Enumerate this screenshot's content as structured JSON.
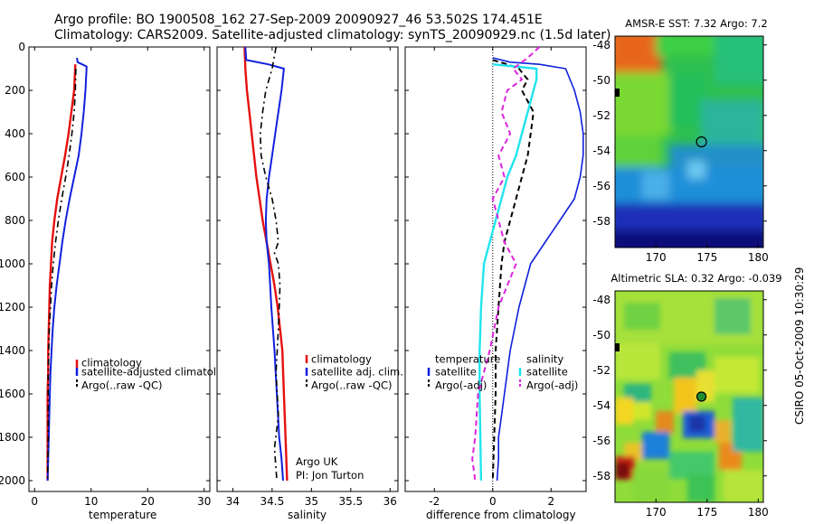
{
  "header": {
    "line1": "Argo profile: BO 1900508_162 27-Sep-2009 20090927_46 53.502S 174.451E",
    "line2": "Climatology: CARS2009. Satellite-adjusted climatology: synTS_20090929.nc (1.5d later)"
  },
  "side_stamp": "CSIRO 05-Oct-2009 10:30:29",
  "colors": {
    "climatology": "#e51010",
    "satellite": "#1020dd",
    "argo": "#000000",
    "sal_satellite": "#22e4ee",
    "sal_argo": "#dd22dd"
  },
  "chart_data": [
    {
      "type": "line",
      "xlabel": "temperature",
      "ylabel": "",
      "xlim": [
        -1,
        31
      ],
      "ylim": [
        2050,
        0
      ],
      "xticks": [
        "0",
        "10",
        "20",
        "30"
      ],
      "yticks": [
        "0",
        "200",
        "400",
        "600",
        "800",
        "1000",
        "1200",
        "1400",
        "1600",
        "1800",
        "2000"
      ],
      "legend": [
        "climatology",
        "satellite-adjusted climatology",
        "Argo(..raw -QC)"
      ],
      "legend_placement": "lower-right",
      "series": [
        {
          "name": "climatology",
          "color": "#e51010",
          "dash": "",
          "width": 2.4,
          "x": [
            7.2,
            7.0,
            6.5,
            6.0,
            5.4,
            4.7,
            4.0,
            3.5,
            3.1,
            2.9,
            2.7,
            2.6,
            2.5,
            2.4,
            2.4,
            2.3,
            2.3,
            2.3,
            2.3
          ],
          "y": [
            80,
            200,
            300,
            400,
            500,
            600,
            700,
            800,
            900,
            1000,
            1100,
            1200,
            1300,
            1400,
            1500,
            1600,
            1700,
            1800,
            2000
          ]
        },
        {
          "name": "satellite-adjusted climatology",
          "color": "#1020dd",
          "dash": "",
          "width": 2,
          "x": [
            7.5,
            7.6,
            8.4,
            9.2,
            9.0,
            8.7,
            8.3,
            7.8,
            7.0,
            6.2,
            5.5,
            4.9,
            4.4,
            3.9,
            3.5,
            3.2,
            3.0,
            2.8,
            2.7,
            2.6,
            2.5,
            2.4,
            2.3
          ],
          "y": [
            50,
            70,
            80,
            90,
            200,
            300,
            400,
            500,
            600,
            700,
            800,
            900,
            1000,
            1100,
            1200,
            1300,
            1400,
            1500,
            1600,
            1700,
            1800,
            1900,
            2000
          ]
        },
        {
          "name": "Argo(..raw -QC)",
          "color": "#000000",
          "dash": "7,4,2,4",
          "width": 1.6,
          "x": [
            7.3,
            7.2,
            7.0,
            6.6,
            6.1,
            5.5,
            4.8,
            4.2,
            3.7,
            3.3,
            3.0,
            2.8,
            2.6,
            2.5,
            2.4,
            2.4,
            2.4,
            2.3
          ],
          "y": [
            100,
            200,
            300,
            400,
            500,
            600,
            700,
            800,
            900,
            1000,
            1100,
            1200,
            1300,
            1400,
            1500,
            1600,
            1800,
            2000
          ]
        }
      ]
    },
    {
      "type": "line",
      "xlabel": "salinity",
      "ylabel": "",
      "xlim": [
        33.8,
        36.1
      ],
      "ylim": [
        2050,
        0
      ],
      "xticks": [
        "34",
        "34.5",
        "35",
        "35.5",
        "36"
      ],
      "legend": [
        "climatology",
        "satellite adj. clim.",
        "Argo(..raw -QC)"
      ],
      "legend_placement": "lower-right",
      "annotation": [
        "Argo UK",
        "PI: Jon Turton"
      ],
      "series": [
        {
          "name": "climatology",
          "color": "#e51010",
          "dash": "",
          "width": 2.4,
          "x": [
            34.15,
            34.16,
            34.18,
            34.21,
            34.24,
            34.27,
            34.3,
            34.34,
            34.38,
            34.43,
            34.48,
            34.53,
            34.57,
            34.6,
            34.63,
            34.65,
            34.67,
            34.69
          ],
          "y": [
            0,
            100,
            200,
            300,
            400,
            500,
            600,
            700,
            800,
            900,
            1000,
            1100,
            1200,
            1300,
            1400,
            1600,
            1800,
            2000
          ]
        },
        {
          "name": "satellite adj. clim.",
          "color": "#1020dd",
          "dash": "",
          "width": 2,
          "x": [
            34.16,
            34.17,
            34.45,
            34.65,
            34.62,
            34.58,
            34.54,
            34.5,
            34.46,
            34.43,
            34.42,
            34.43,
            34.46,
            34.49,
            34.53,
            34.56,
            34.59,
            34.62,
            34.64
          ],
          "y": [
            0,
            60,
            80,
            100,
            200,
            300,
            400,
            500,
            600,
            700,
            800,
            900,
            1000,
            1200,
            1400,
            1600,
            1800,
            1900,
            2000
          ]
        },
        {
          "name": "Argo(..raw -QC)",
          "color": "#000000",
          "dash": "7,4,2,4",
          "width": 1.6,
          "x": [
            34.55,
            34.5,
            34.42,
            34.38,
            34.35,
            34.36,
            34.42,
            34.5,
            34.55,
            34.58,
            34.53,
            34.58,
            34.6,
            34.58,
            34.55,
            34.58,
            34.53,
            34.55,
            34.56
          ],
          "y": [
            0,
            100,
            200,
            300,
            400,
            500,
            600,
            700,
            800,
            900,
            950,
            1000,
            1100,
            1300,
            1500,
            1700,
            1850,
            1950,
            2000
          ]
        }
      ]
    },
    {
      "type": "line",
      "xlabel": "difference from climatology",
      "ylabel": "",
      "xlim": [
        -3,
        3.2
      ],
      "ylim": [
        2050,
        0
      ],
      "xticks": [
        "-2",
        "0",
        "2"
      ],
      "legend_temperature": [
        "temperature",
        "satellite",
        "Argo(-adj)"
      ],
      "legend_salinity": [
        "salinity",
        "satellite",
        "Argo(-adj)"
      ],
      "series": [
        {
          "name": "temperature satellite",
          "color": "#1020dd",
          "dash": "",
          "width": 1.6,
          "x": [
            0.0,
            0.6,
            1.6,
            2.5,
            2.8,
            3.0,
            3.1,
            3.1,
            3.0,
            2.8,
            2.3,
            1.8,
            1.3,
            0.9,
            0.6,
            0.4,
            0.3,
            0.2,
            0.2,
            0.15
          ],
          "y": [
            50,
            70,
            80,
            100,
            200,
            300,
            400,
            500,
            600,
            700,
            800,
            900,
            1000,
            1200,
            1400,
            1600,
            1700,
            1800,
            1900,
            2000
          ]
        },
        {
          "name": "temperature Argo(-adj)",
          "color": "#000000",
          "dash": "6,4",
          "width": 2,
          "x": [
            0.0,
            0.5,
            0.9,
            1.2,
            1.0,
            1.4,
            1.3,
            1.2,
            1.0,
            0.8,
            0.6,
            0.4,
            0.3,
            0.2,
            0.1,
            0.1,
            0.05,
            0.0
          ],
          "y": [
            60,
            80,
            100,
            150,
            200,
            300,
            400,
            500,
            600,
            700,
            800,
            900,
            1000,
            1200,
            1400,
            1600,
            1800,
            2000
          ]
        },
        {
          "name": "salinity satellite",
          "color": "#22e4ee",
          "dash": "",
          "width": 2.4,
          "x": [
            0.0,
            1.5,
            1.5,
            1.4,
            1.2,
            1.0,
            0.8,
            0.5,
            0.3,
            0.1,
            -0.1,
            -0.3,
            -0.4,
            -0.45,
            -0.45,
            -0.4
          ],
          "y": [
            80,
            100,
            150,
            200,
            300,
            400,
            500,
            600,
            700,
            800,
            900,
            1000,
            1200,
            1400,
            1600,
            2000
          ]
        },
        {
          "name": "salinity Argo(-adj)",
          "color": "#dd22dd",
          "dash": "6,4",
          "width": 2,
          "x": [
            1.6,
            1.2,
            0.7,
            1.0,
            0.5,
            0.3,
            0.6,
            0.2,
            0.4,
            0.0,
            0.4,
            0.8,
            0.5,
            0.2,
            -0.1,
            -0.5,
            -0.6,
            -0.7,
            -0.6
          ],
          "y": [
            0,
            50,
            100,
            150,
            200,
            300,
            400,
            500,
            600,
            700,
            900,
            1000,
            1100,
            1200,
            1400,
            1600,
            1800,
            1900,
            2000
          ]
        }
      ]
    },
    {
      "type": "heatmap",
      "title": "AMSR-E SST: 7.32 Argo: 7.2",
      "xlim": [
        166,
        180.5
      ],
      "ylim": [
        -59.5,
        -47.5
      ],
      "xticks": [
        "170",
        "175",
        "180"
      ],
      "yticks": [
        "-48",
        "-50",
        "-52",
        "-54",
        "-56",
        "-58"
      ],
      "marker": {
        "lon": 174.45,
        "lat": -53.5,
        "fill": "none"
      }
    },
    {
      "type": "heatmap",
      "title": "Altimetric SLA: 0.32 Argo: -0.039",
      "xlim": [
        166,
        180.5
      ],
      "ylim": [
        -59.5,
        -47.5
      ],
      "xticks": [
        "170",
        "175",
        "180"
      ],
      "yticks": [
        "-48",
        "-50",
        "-52",
        "-54",
        "-56",
        "-58"
      ],
      "marker": {
        "lon": 174.45,
        "lat": -53.5,
        "fill": "#1f8f2f"
      }
    }
  ]
}
